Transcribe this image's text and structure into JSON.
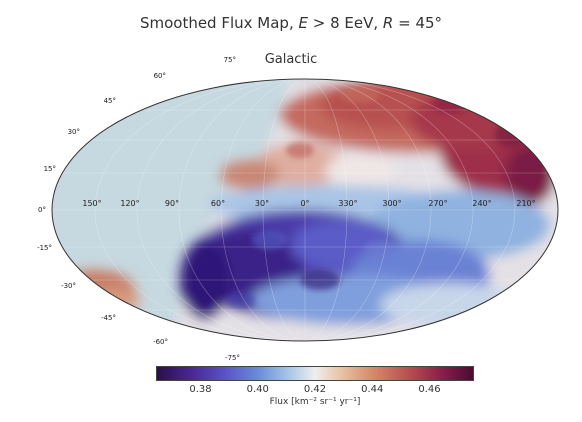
{
  "title": {
    "prefix": "Smoothed Flux Map, ",
    "energy_symbol": "E",
    "energy_text": " > 8 EeV, ",
    "radius_symbol": "R",
    "radius_text": " = 45°"
  },
  "subtitle": "Galactic",
  "map_data": {
    "projection": "mollweide",
    "coordinate_system": "Galactic",
    "longitude_labels": [
      "150°",
      "120°",
      "90°",
      "60°",
      "30°",
      "0°",
      "330°",
      "300°",
      "270°",
      "240°",
      "210°"
    ],
    "latitude_labels_left": [
      "75°",
      "60°",
      "45°",
      "30°",
      "15°",
      "0°",
      "-15°",
      "-30°",
      "-45°",
      "-60°",
      "-75°"
    ],
    "masked_region_color": "#c6d8e0"
  },
  "colorbar": {
    "tick_labels": [
      "0.38",
      "0.40",
      "0.42",
      "0.44",
      "0.46"
    ],
    "tick_values": [
      0.38,
      0.4,
      0.42,
      0.44,
      0.46
    ],
    "range": [
      0.365,
      0.475
    ],
    "label": "Flux [km⁻² sr⁻¹ yr⁻¹]",
    "colors": [
      "#2a0f4a",
      "#4c2a9a",
      "#5a55c8",
      "#6a8cd8",
      "#a9c8e6",
      "#eeeeee",
      "#e9c4a6",
      "#d68a6c",
      "#b74d4e",
      "#8a1f4a",
      "#4a0b33"
    ]
  }
}
